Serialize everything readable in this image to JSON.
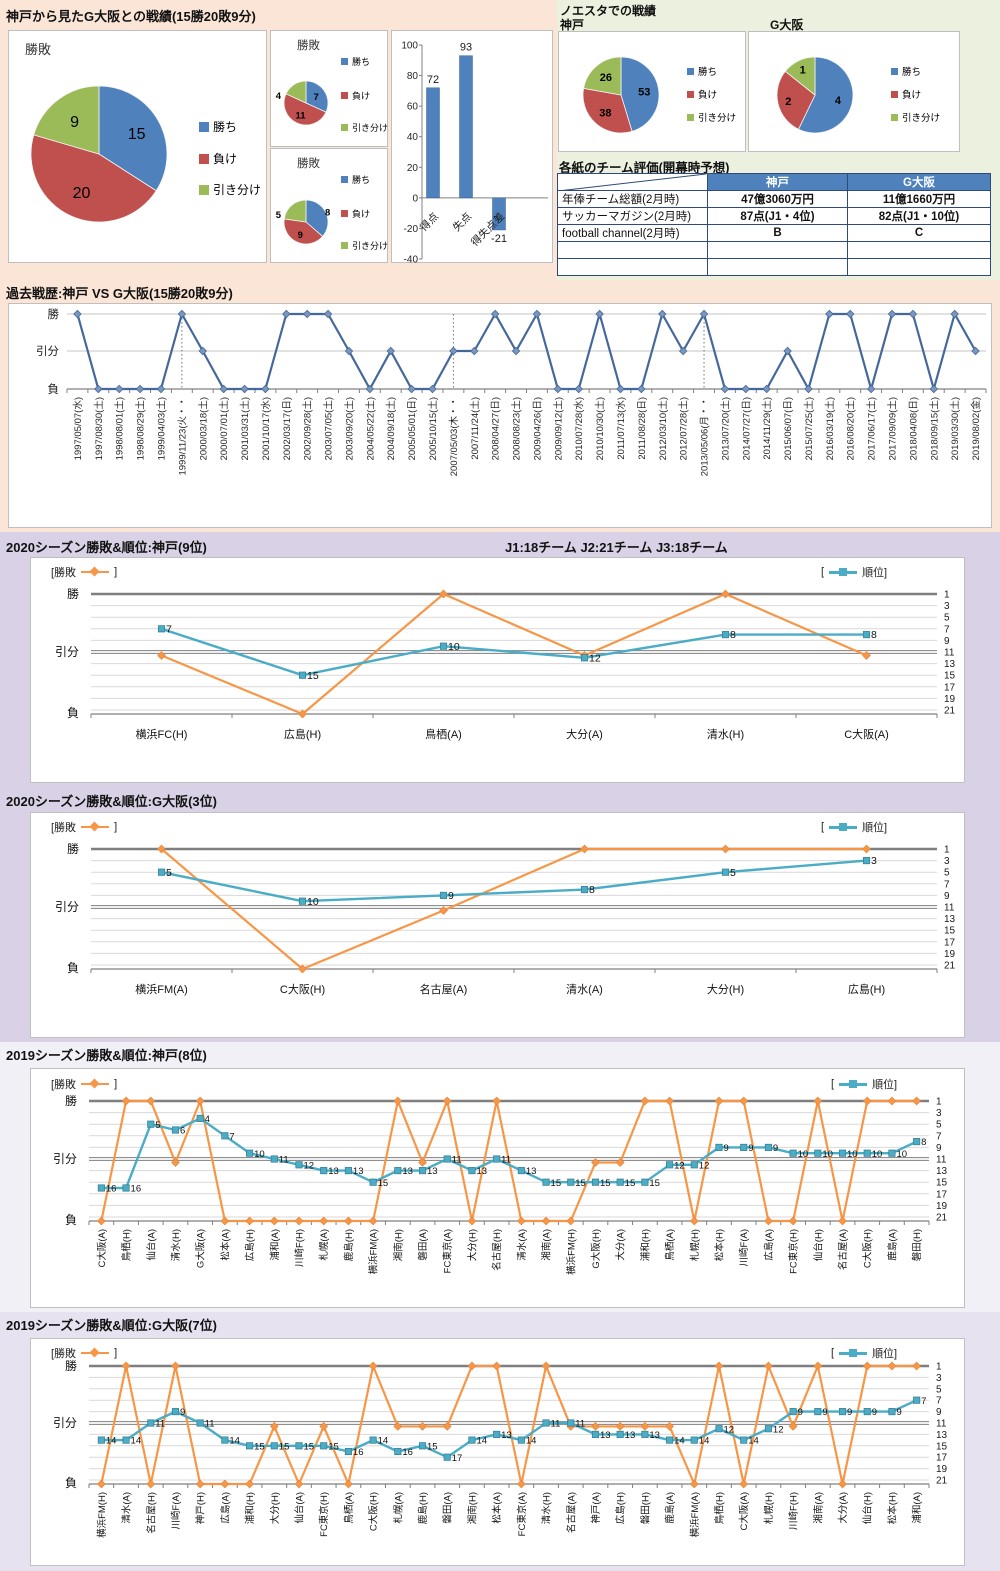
{
  "sections": {
    "head_to_head": {
      "title": "神戸から見たG大阪との戦績(15勝20敗9分)"
    },
    "noevir": {
      "title": "ノエスタでの戦績",
      "kobe_label": "神戸",
      "gamba_label": "G大阪"
    },
    "ratings_table": {
      "title": "各紙のチーム評価(開幕時予想)",
      "columns": [
        "",
        "神戸",
        "G大阪"
      ],
      "rows": [
        [
          "年俸チーム総額(2月時)",
          "47億3060万円",
          "11億1660万円"
        ],
        [
          "サッカーマガジン(2月時)",
          "87点(J1・4位)",
          "82点(J1・10位)"
        ],
        [
          "football channel(2月時)",
          "B",
          "C"
        ],
        [
          "",
          "",
          ""
        ],
        [
          "",
          "",
          ""
        ]
      ]
    },
    "season_legend": {
      "left_open": "[勝敗",
      "close": "]",
      "right_open": "[",
      "right_label": "順位]"
    }
  },
  "colors": {
    "win_blue": "#4f81bd",
    "loss_red": "#c0504d",
    "draw_green": "#9bbb59",
    "record_orange": "#f79646",
    "rank_teal": "#4bacc6",
    "history_line": "#45689b"
  },
  "chart_data": [
    {
      "type": "pie",
      "id": "pie-main",
      "title": "勝敗",
      "labels": [
        "勝ち",
        "負け",
        "引き分け"
      ],
      "values": [
        15,
        20,
        9
      ]
    },
    {
      "type": "pie",
      "id": "pie-small-1",
      "title": "勝敗",
      "labels": [
        "勝ち",
        "負け",
        "引き分け"
      ],
      "values": [
        7,
        11,
        4
      ]
    },
    {
      "type": "pie",
      "id": "pie-small-2",
      "title": "勝敗",
      "labels": [
        "勝ち",
        "負け",
        "引き分け"
      ],
      "values": [
        8,
        9,
        5
      ]
    },
    {
      "type": "bar",
      "id": "bar-goals",
      "categories": [
        "得点",
        "失点",
        "得失点差"
      ],
      "values": [
        72,
        93,
        -21
      ],
      "ylim": [
        -40,
        100
      ],
      "ystep": 20
    },
    {
      "type": "pie",
      "id": "pie-noe-kobe",
      "title": "神戸",
      "labels": [
        "勝ち",
        "負け",
        "引き分け"
      ],
      "values": [
        53,
        38,
        26
      ]
    },
    {
      "type": "pie",
      "id": "pie-noe-gamba",
      "title": "G大阪",
      "labels": [
        "勝ち",
        "負け",
        "引き分け"
      ],
      "values": [
        4,
        2,
        1
      ]
    },
    {
      "type": "line",
      "id": "history",
      "title": "過去戦歴:神戸 VS G大阪(15勝20敗9分)",
      "left_axis": [
        "勝",
        "引分",
        "負"
      ],
      "dotted_categories": [
        5,
        18,
        30
      ],
      "categories": [
        "1997/05/07(水)",
        "1997/08/30(土)",
        "1998/08/01(土)",
        "1998/08/29(土)",
        "1999/04/03(土)",
        "1999/11/23(火・・",
        "2000/03/18(土)",
        "2000/07/01(土)",
        "2001/03/31(土)",
        "2001/10/17(水)",
        "2002/03/17(日)",
        "2002/09/28(土)",
        "2003/07/05(土)",
        "2003/09/20(土)",
        "2004/05/22(土)",
        "2004/09/18(土)",
        "2005/05/01(日)",
        "2005/10/15(土)",
        "2007/05/03(木・・",
        "2007/11/24(土)",
        "2008/04/27(日)",
        "2008/08/23(土)",
        "2009/04/26(日)",
        "2009/09/12(土)",
        "2010/07/28(水)",
        "2010/10/30(土)",
        "2011/07/13(水)",
        "2011/08/28(日)",
        "2012/03/10(土)",
        "2012/07/28(土)",
        "2013/05/06(月・・",
        "2013/07/20(土)",
        "2014/07/27(日)",
        "2014/11/29(土)",
        "2015/06/07(日)",
        "2015/07/25(土)",
        "2016/03/19(土)",
        "2016/08/20(土)",
        "2017/06/17(土)",
        "2017/09/09(土)",
        "2018/04/08(日)",
        "2018/09/15(土)",
        "2019/03/30(土)",
        "2019/08/02(金)"
      ],
      "series": [
        {
          "name": "勝敗",
          "values": [
            "勝",
            "負",
            "負",
            "負",
            "負",
            "勝",
            "引分",
            "負",
            "負",
            "負",
            "勝",
            "勝",
            "勝",
            "引分",
            "負",
            "引分",
            "負",
            "負",
            "引分",
            "引分",
            "勝",
            "引分",
            "勝",
            "負",
            "負",
            "勝",
            "負",
            "負",
            "勝",
            "引分",
            "勝",
            "負",
            "負",
            "負",
            "引分",
            "負",
            "勝",
            "勝",
            "負",
            "勝",
            "勝",
            "負",
            "勝",
            "引分"
          ]
        }
      ]
    },
    {
      "type": "line",
      "id": "s2020-kobe",
      "title": "2020シーズン勝敗&順位:神戸(9位)",
      "header": "J1:18チーム  J2:21チーム  J3:18チーム",
      "left_axis": [
        "勝",
        "引分",
        "負"
      ],
      "right_axis": [
        1,
        3,
        5,
        7,
        9,
        11,
        13,
        15,
        17,
        19,
        21
      ],
      "categories": [
        "横浜FC(H)",
        "広島(H)",
        "鳥栖(A)",
        "大分(A)",
        "清水(H)",
        "C大阪(A)"
      ],
      "series": [
        {
          "name": "勝敗",
          "values": [
            "引分",
            "負",
            "勝",
            "引分",
            "勝",
            "引分"
          ]
        },
        {
          "name": "順位",
          "values": [
            7,
            15,
            10,
            12,
            8,
            8
          ]
        }
      ]
    },
    {
      "type": "line",
      "id": "s2020-gamba",
      "title": "2020シーズン勝敗&順位:G大阪(3位)",
      "header": "",
      "left_axis": [
        "勝",
        "引分",
        "負"
      ],
      "right_axis": [
        1,
        3,
        5,
        7,
        9,
        11,
        13,
        15,
        17,
        19,
        21
      ],
      "categories": [
        "横浜FM(A)",
        "C大阪(H)",
        "名古屋(A)",
        "清水(A)",
        "大分(H)",
        "広島(H)"
      ],
      "series": [
        {
          "name": "勝敗",
          "values": [
            "勝",
            "負",
            "引分",
            "勝",
            "勝",
            "勝"
          ]
        },
        {
          "name": "順位",
          "values": [
            5,
            10,
            9,
            8,
            5,
            3
          ]
        }
      ]
    },
    {
      "type": "line",
      "id": "s2019-kobe",
      "title": "2019シーズン勝敗&順位:神戸(8位)",
      "header": "",
      "left_axis": [
        "勝",
        "引分",
        "負"
      ],
      "right_axis": [
        1,
        3,
        5,
        7,
        9,
        11,
        13,
        15,
        17,
        19,
        21
      ],
      "categories": [
        "C大阪(A)",
        "鳥栖(H)",
        "仙台(A)",
        "清水(H)",
        "G大阪(A)",
        "松本(A)",
        "広島(H)",
        "浦和(A)",
        "川崎F(H)",
        "札幌(A)",
        "鹿島(H)",
        "横浜FM(A)",
        "湘南(H)",
        "磐田(A)",
        "FC東京(A)",
        "大分(H)",
        "名古屋(H)",
        "清水(A)",
        "湘南(A)",
        "横浜FM(H)",
        "G大阪(H)",
        "大分(A)",
        "浦和(H)",
        "鳥栖(A)",
        "札幌(H)",
        "松本(H)",
        "川崎F(A)",
        "広島(A)",
        "FC東京(H)",
        "仙台(H)",
        "名古屋(A)",
        "C大阪(H)",
        "鹿島(A)",
        "磐田(H)"
      ],
      "series": [
        {
          "name": "勝敗",
          "values": [
            "負",
            "勝",
            "勝",
            "引分",
            "勝",
            "負",
            "負",
            "負",
            "負",
            "負",
            "負",
            "負",
            "勝",
            "引分",
            "勝",
            "負",
            "勝",
            "負",
            "負",
            "負",
            "引分",
            "引分",
            "勝",
            "勝",
            "負",
            "勝",
            "勝",
            "負",
            "負",
            "勝",
            "負",
            "勝",
            "勝",
            "勝"
          ]
        },
        {
          "name": "順位",
          "values": [
            16,
            16,
            5,
            6,
            4,
            7,
            10,
            11,
            12,
            13,
            13,
            15,
            13,
            13,
            11,
            13,
            11,
            13,
            15,
            15,
            15,
            15,
            15,
            12,
            12,
            9,
            9,
            9,
            10,
            10,
            10,
            10,
            10,
            8
          ]
        }
      ]
    },
    {
      "type": "line",
      "id": "s2019-gamba",
      "title": "2019シーズン勝敗&順位:G大阪(7位)",
      "header": "",
      "left_axis": [
        "勝",
        "引分",
        "負"
      ],
      "right_axis": [
        1,
        3,
        5,
        7,
        9,
        11,
        13,
        15,
        17,
        19,
        21
      ],
      "categories": [
        "横浜FM(H)",
        "清水(A)",
        "名古屋(H)",
        "川崎F(A)",
        "神戸(H)",
        "広島(A)",
        "浦和(H)",
        "大分(H)",
        "仙台(A)",
        "FC東京(H)",
        "鳥栖(A)",
        "C大阪(H)",
        "札幌(A)",
        "鹿島(H)",
        "磐田(A)",
        "湘南(H)",
        "松本(A)",
        "FC東京(A)",
        "清水(H)",
        "名古屋(A)",
        "神戸(A)",
        "広島(H)",
        "磐田(H)",
        "鹿島(A)",
        "横浜FM(A)",
        "鳥栖(H)",
        "C大阪(A)",
        "札幌(H)",
        "川崎F(H)",
        "湘南(A)",
        "大分(A)",
        "仙台(H)",
        "松本(H)",
        "浦和(A)"
      ],
      "series": [
        {
          "name": "勝敗",
          "values": [
            "負",
            "勝",
            "負",
            "勝",
            "負",
            "負",
            "負",
            "引分",
            "負",
            "引分",
            "負",
            "勝",
            "引分",
            "引分",
            "引分",
            "勝",
            "勝",
            "負",
            "勝",
            "引分",
            "引分",
            "引分",
            "引分",
            "引分",
            "負",
            "勝",
            "負",
            "勝",
            "引分",
            "勝",
            "負",
            "勝",
            "勝",
            "勝"
          ]
        },
        {
          "name": "順位",
          "values": [
            14,
            14,
            11,
            9,
            11,
            14,
            15,
            15,
            15,
            15,
            16,
            14,
            16,
            15,
            17,
            14,
            13,
            14,
            11,
            11,
            13,
            13,
            13,
            14,
            14,
            12,
            14,
            12,
            9,
            9,
            9,
            9,
            9,
            7
          ]
        }
      ]
    }
  ]
}
